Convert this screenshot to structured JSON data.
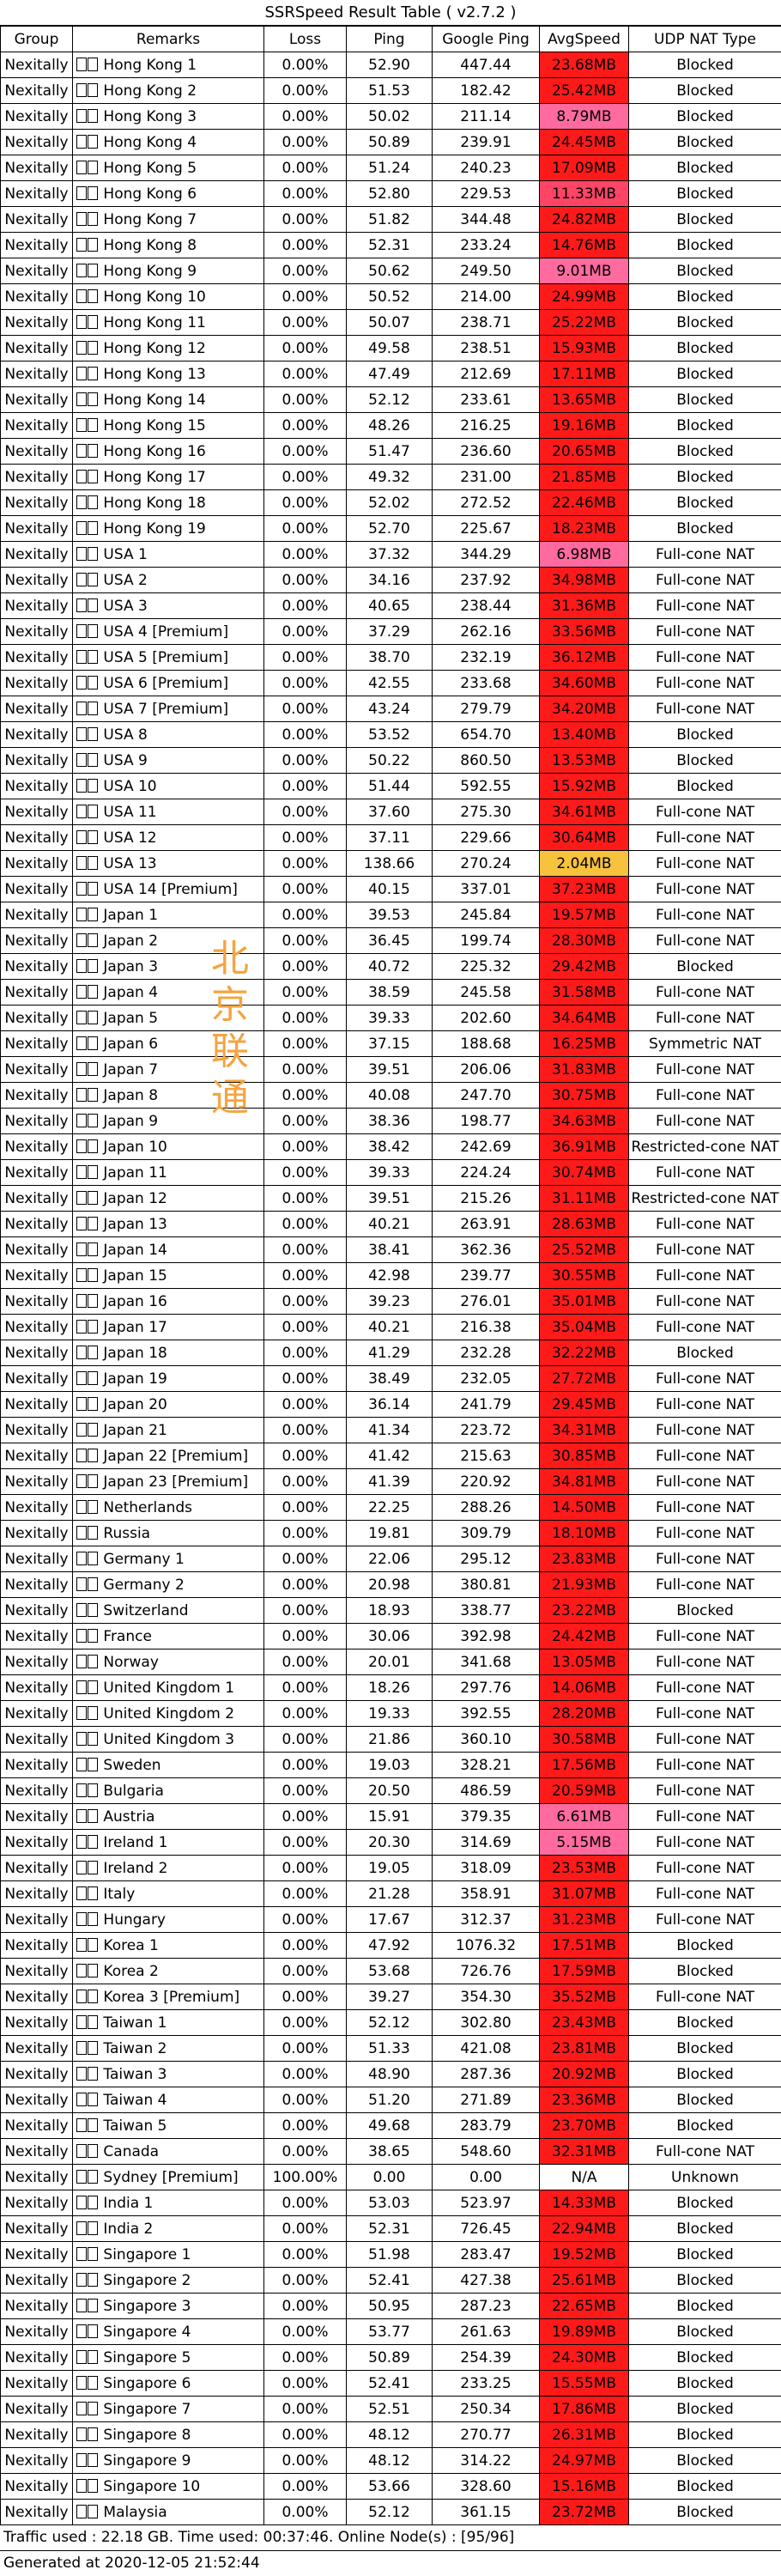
{
  "title": "SSRSpeed Result Table ( v2.7.2 )",
  "headers": [
    "Group",
    "Remarks",
    "Loss",
    "Ping",
    "Google Ping",
    "AvgSpeed",
    "UDP NAT Type"
  ],
  "rows": [
    [
      "Nexitally",
      "Hong Kong 1",
      "0.00%",
      "52.90",
      "447.44",
      "23.68MB",
      "Blocked",
      "#ff1a1a"
    ],
    [
      "Nexitally",
      "Hong Kong 2",
      "0.00%",
      "51.53",
      "182.42",
      "25.42MB",
      "Blocked",
      "#ff1a1a"
    ],
    [
      "Nexitally",
      "Hong Kong 3",
      "0.00%",
      "50.02",
      "211.14",
      "8.79MB",
      "Blocked",
      "#ff6a9f"
    ],
    [
      "Nexitally",
      "Hong Kong 4",
      "0.00%",
      "50.89",
      "239.91",
      "24.45MB",
      "Blocked",
      "#ff1a1a"
    ],
    [
      "Nexitally",
      "Hong Kong 5",
      "0.00%",
      "51.24",
      "240.23",
      "17.09MB",
      "Blocked",
      "#ff1a1a"
    ],
    [
      "Nexitally",
      "Hong Kong 6",
      "0.00%",
      "52.80",
      "229.53",
      "11.33MB",
      "Blocked",
      "#ff4466"
    ],
    [
      "Nexitally",
      "Hong Kong 7",
      "0.00%",
      "51.82",
      "344.48",
      "24.82MB",
      "Blocked",
      "#ff1a1a"
    ],
    [
      "Nexitally",
      "Hong Kong 8",
      "0.00%",
      "52.31",
      "233.24",
      "14.76MB",
      "Blocked",
      "#ff1a1a"
    ],
    [
      "Nexitally",
      "Hong Kong 9",
      "0.00%",
      "50.62",
      "249.50",
      "9.01MB",
      "Blocked",
      "#ff6a9f"
    ],
    [
      "Nexitally",
      "Hong Kong 10",
      "0.00%",
      "50.52",
      "214.00",
      "24.99MB",
      "Blocked",
      "#ff1a1a"
    ],
    [
      "Nexitally",
      "Hong Kong 11",
      "0.00%",
      "50.07",
      "238.71",
      "25.22MB",
      "Blocked",
      "#ff1a1a"
    ],
    [
      "Nexitally",
      "Hong Kong 12",
      "0.00%",
      "49.58",
      "238.51",
      "15.93MB",
      "Blocked",
      "#ff1a1a"
    ],
    [
      "Nexitally",
      "Hong Kong 13",
      "0.00%",
      "47.49",
      "212.69",
      "17.11MB",
      "Blocked",
      "#ff1a1a"
    ],
    [
      "Nexitally",
      "Hong Kong 14",
      "0.00%",
      "52.12",
      "233.61",
      "13.65MB",
      "Blocked",
      "#ff1a1a"
    ],
    [
      "Nexitally",
      "Hong Kong 15",
      "0.00%",
      "48.26",
      "216.25",
      "19.16MB",
      "Blocked",
      "#ff1a1a"
    ],
    [
      "Nexitally",
      "Hong Kong 16",
      "0.00%",
      "51.47",
      "236.60",
      "20.65MB",
      "Blocked",
      "#ff1a1a"
    ],
    [
      "Nexitally",
      "Hong Kong 17",
      "0.00%",
      "49.32",
      "231.00",
      "21.85MB",
      "Blocked",
      "#ff1a1a"
    ],
    [
      "Nexitally",
      "Hong Kong 18",
      "0.00%",
      "52.02",
      "272.52",
      "22.46MB",
      "Blocked",
      "#ff1a1a"
    ],
    [
      "Nexitally",
      "Hong Kong 19",
      "0.00%",
      "52.70",
      "225.67",
      "18.23MB",
      "Blocked",
      "#ff1a1a"
    ],
    [
      "Nexitally",
      "USA 1",
      "0.00%",
      "37.32",
      "344.29",
      "6.98MB",
      "Full-cone NAT",
      "#ff6a9f"
    ],
    [
      "Nexitally",
      "USA 2",
      "0.00%",
      "34.16",
      "237.92",
      "34.98MB",
      "Full-cone NAT",
      "#ff1a1a"
    ],
    [
      "Nexitally",
      "USA 3",
      "0.00%",
      "40.65",
      "238.44",
      "31.36MB",
      "Full-cone NAT",
      "#ff1a1a"
    ],
    [
      "Nexitally",
      "USA 4 [Premium]",
      "0.00%",
      "37.29",
      "262.16",
      "33.56MB",
      "Full-cone NAT",
      "#ff1a1a"
    ],
    [
      "Nexitally",
      "USA 5 [Premium]",
      "0.00%",
      "38.70",
      "232.19",
      "36.12MB",
      "Full-cone NAT",
      "#ff1a1a"
    ],
    [
      "Nexitally",
      "USA 6 [Premium]",
      "0.00%",
      "42.55",
      "233.68",
      "34.60MB",
      "Full-cone NAT",
      "#ff1a1a"
    ],
    [
      "Nexitally",
      "USA 7 [Premium]",
      "0.00%",
      "43.24",
      "279.79",
      "34.20MB",
      "Full-cone NAT",
      "#ff1a1a"
    ],
    [
      "Nexitally",
      "USA 8",
      "0.00%",
      "53.52",
      "654.70",
      "13.40MB",
      "Blocked",
      "#ff1a1a"
    ],
    [
      "Nexitally",
      "USA 9",
      "0.00%",
      "50.22",
      "860.50",
      "13.53MB",
      "Blocked",
      "#ff1a1a"
    ],
    [
      "Nexitally",
      "USA 10",
      "0.00%",
      "51.44",
      "592.55",
      "15.92MB",
      "Blocked",
      "#ff1a1a"
    ],
    [
      "Nexitally",
      "USA 11",
      "0.00%",
      "37.60",
      "275.30",
      "34.61MB",
      "Full-cone NAT",
      "#ff1a1a"
    ],
    [
      "Nexitally",
      "USA 12",
      "0.00%",
      "37.11",
      "229.66",
      "30.64MB",
      "Full-cone NAT",
      "#ff1a1a"
    ],
    [
      "Nexitally",
      "USA 13",
      "0.00%",
      "138.66",
      "270.24",
      "2.04MB",
      "Full-cone NAT",
      "#f7c23c"
    ],
    [
      "Nexitally",
      "USA 14 [Premium]",
      "0.00%",
      "40.15",
      "337.01",
      "37.23MB",
      "Full-cone NAT",
      "#ff1a1a"
    ],
    [
      "Nexitally",
      "Japan 1",
      "0.00%",
      "39.53",
      "245.84",
      "19.57MB",
      "Full-cone NAT",
      "#ff1a1a"
    ],
    [
      "Nexitally",
      "Japan 2",
      "0.00%",
      "36.45",
      "199.74",
      "28.30MB",
      "Full-cone NAT",
      "#ff1a1a"
    ],
    [
      "Nexitally",
      "Japan 3",
      "0.00%",
      "40.72",
      "225.32",
      "29.42MB",
      "Blocked",
      "#ff1a1a"
    ],
    [
      "Nexitally",
      "Japan 4",
      "0.00%",
      "38.59",
      "245.58",
      "31.58MB",
      "Full-cone NAT",
      "#ff1a1a"
    ],
    [
      "Nexitally",
      "Japan 5",
      "0.00%",
      "39.33",
      "202.60",
      "34.64MB",
      "Full-cone NAT",
      "#ff1a1a"
    ],
    [
      "Nexitally",
      "Japan 6",
      "0.00%",
      "37.15",
      "188.68",
      "16.25MB",
      "Symmetric NAT",
      "#ff1a1a"
    ],
    [
      "Nexitally",
      "Japan 7",
      "0.00%",
      "39.51",
      "206.06",
      "31.83MB",
      "Full-cone NAT",
      "#ff1a1a"
    ],
    [
      "Nexitally",
      "Japan 8",
      "0.00%",
      "40.08",
      "247.70",
      "30.75MB",
      "Full-cone NAT",
      "#ff1a1a"
    ],
    [
      "Nexitally",
      "Japan 9",
      "0.00%",
      "38.36",
      "198.77",
      "34.63MB",
      "Full-cone NAT",
      "#ff1a1a"
    ],
    [
      "Nexitally",
      "Japan 10",
      "0.00%",
      "38.42",
      "242.69",
      "36.91MB",
      "Restricted-cone NAT",
      "#ff1a1a"
    ],
    [
      "Nexitally",
      "Japan 11",
      "0.00%",
      "39.33",
      "224.24",
      "30.74MB",
      "Full-cone NAT",
      "#ff1a1a"
    ],
    [
      "Nexitally",
      "Japan 12",
      "0.00%",
      "39.51",
      "215.26",
      "31.11MB",
      "Restricted-cone NAT",
      "#ff1a1a"
    ],
    [
      "Nexitally",
      "Japan 13",
      "0.00%",
      "40.21",
      "263.91",
      "28.63MB",
      "Full-cone NAT",
      "#ff1a1a"
    ],
    [
      "Nexitally",
      "Japan 14",
      "0.00%",
      "38.41",
      "362.36",
      "25.52MB",
      "Full-cone NAT",
      "#ff1a1a"
    ],
    [
      "Nexitally",
      "Japan 15",
      "0.00%",
      "42.98",
      "239.77",
      "30.55MB",
      "Full-cone NAT",
      "#ff1a1a"
    ],
    [
      "Nexitally",
      "Japan 16",
      "0.00%",
      "39.23",
      "276.01",
      "35.01MB",
      "Full-cone NAT",
      "#ff1a1a"
    ],
    [
      "Nexitally",
      "Japan 17",
      "0.00%",
      "40.21",
      "216.38",
      "35.04MB",
      "Full-cone NAT",
      "#ff1a1a"
    ],
    [
      "Nexitally",
      "Japan 18",
      "0.00%",
      "41.29",
      "232.28",
      "32.22MB",
      "Blocked",
      "#ff1a1a"
    ],
    [
      "Nexitally",
      "Japan 19",
      "0.00%",
      "38.49",
      "232.05",
      "27.72MB",
      "Full-cone NAT",
      "#ff1a1a"
    ],
    [
      "Nexitally",
      "Japan 20",
      "0.00%",
      "36.14",
      "241.79",
      "29.45MB",
      "Full-cone NAT",
      "#ff1a1a"
    ],
    [
      "Nexitally",
      "Japan 21",
      "0.00%",
      "41.34",
      "223.72",
      "34.31MB",
      "Full-cone NAT",
      "#ff1a1a"
    ],
    [
      "Nexitally",
      "Japan 22 [Premium]",
      "0.00%",
      "41.42",
      "215.63",
      "30.85MB",
      "Full-cone NAT",
      "#ff1a1a"
    ],
    [
      "Nexitally",
      "Japan 23 [Premium]",
      "0.00%",
      "41.39",
      "220.92",
      "34.81MB",
      "Full-cone NAT",
      "#ff1a1a"
    ],
    [
      "Nexitally",
      "Netherlands",
      "0.00%",
      "22.25",
      "288.26",
      "14.50MB",
      "Full-cone NAT",
      "#ff1a1a"
    ],
    [
      "Nexitally",
      "Russia",
      "0.00%",
      "19.81",
      "309.79",
      "18.10MB",
      "Full-cone NAT",
      "#ff1a1a"
    ],
    [
      "Nexitally",
      "Germany 1",
      "0.00%",
      "22.06",
      "295.12",
      "23.83MB",
      "Full-cone NAT",
      "#ff1a1a"
    ],
    [
      "Nexitally",
      "Germany 2",
      "0.00%",
      "20.98",
      "380.81",
      "21.93MB",
      "Full-cone NAT",
      "#ff1a1a"
    ],
    [
      "Nexitally",
      "Switzerland",
      "0.00%",
      "18.93",
      "338.77",
      "23.22MB",
      "Blocked",
      "#ff1a1a"
    ],
    [
      "Nexitally",
      "France",
      "0.00%",
      "30.06",
      "392.98",
      "24.42MB",
      "Full-cone NAT",
      "#ff1a1a"
    ],
    [
      "Nexitally",
      "Norway",
      "0.00%",
      "20.01",
      "341.68",
      "13.05MB",
      "Full-cone NAT",
      "#ff1a1a"
    ],
    [
      "Nexitally",
      "United Kingdom 1",
      "0.00%",
      "18.26",
      "297.76",
      "14.06MB",
      "Full-cone NAT",
      "#ff1a1a"
    ],
    [
      "Nexitally",
      "United Kingdom 2",
      "0.00%",
      "19.33",
      "392.55",
      "28.20MB",
      "Full-cone NAT",
      "#ff1a1a"
    ],
    [
      "Nexitally",
      "United Kingdom 3",
      "0.00%",
      "21.86",
      "360.10",
      "30.58MB",
      "Full-cone NAT",
      "#ff1a1a"
    ],
    [
      "Nexitally",
      "Sweden",
      "0.00%",
      "19.03",
      "328.21",
      "17.56MB",
      "Full-cone NAT",
      "#ff1a1a"
    ],
    [
      "Nexitally",
      "Bulgaria",
      "0.00%",
      "20.50",
      "486.59",
      "20.59MB",
      "Full-cone NAT",
      "#ff1a1a"
    ],
    [
      "Nexitally",
      "Austria",
      "0.00%",
      "15.91",
      "379.35",
      "6.61MB",
      "Full-cone NAT",
      "#ff6a9f"
    ],
    [
      "Nexitally",
      "Ireland 1",
      "0.00%",
      "20.30",
      "314.69",
      "5.15MB",
      "Full-cone NAT",
      "#ff6a9f"
    ],
    [
      "Nexitally",
      "Ireland 2",
      "0.00%",
      "19.05",
      "318.09",
      "23.53MB",
      "Full-cone NAT",
      "#ff1a1a"
    ],
    [
      "Nexitally",
      "Italy",
      "0.00%",
      "21.28",
      "358.91",
      "31.07MB",
      "Full-cone NAT",
      "#ff1a1a"
    ],
    [
      "Nexitally",
      "Hungary",
      "0.00%",
      "17.67",
      "312.37",
      "31.23MB",
      "Full-cone NAT",
      "#ff1a1a"
    ],
    [
      "Nexitally",
      "Korea 1",
      "0.00%",
      "47.92",
      "1076.32",
      "17.51MB",
      "Blocked",
      "#ff1a1a"
    ],
    [
      "Nexitally",
      "Korea 2",
      "0.00%",
      "53.68",
      "726.76",
      "17.59MB",
      "Blocked",
      "#ff1a1a"
    ],
    [
      "Nexitally",
      "Korea 3 [Premium]",
      "0.00%",
      "39.27",
      "354.30",
      "35.52MB",
      "Full-cone NAT",
      "#ff1a1a"
    ],
    [
      "Nexitally",
      "Taiwan 1",
      "0.00%",
      "52.12",
      "302.80",
      "23.43MB",
      "Blocked",
      "#ff1a1a"
    ],
    [
      "Nexitally",
      "Taiwan 2",
      "0.00%",
      "51.33",
      "421.08",
      "23.81MB",
      "Blocked",
      "#ff1a1a"
    ],
    [
      "Nexitally",
      "Taiwan 3",
      "0.00%",
      "48.90",
      "287.36",
      "20.92MB",
      "Blocked",
      "#ff1a1a"
    ],
    [
      "Nexitally",
      "Taiwan 4",
      "0.00%",
      "51.20",
      "271.89",
      "23.36MB",
      "Blocked",
      "#ff1a1a"
    ],
    [
      "Nexitally",
      "Taiwan 5",
      "0.00%",
      "49.68",
      "283.79",
      "23.70MB",
      "Blocked",
      "#ff1a1a"
    ],
    [
      "Nexitally",
      "Canada",
      "0.00%",
      "38.65",
      "548.60",
      "32.31MB",
      "Full-cone NAT",
      "#ff1a1a"
    ],
    [
      "Nexitally",
      "Sydney [Premium]",
      "100.00%",
      "0.00",
      "0.00",
      "N/A",
      "Unknown",
      "#ffffff"
    ],
    [
      "Nexitally",
      "India 1",
      "0.00%",
      "53.03",
      "523.97",
      "14.33MB",
      "Blocked",
      "#ff1a1a"
    ],
    [
      "Nexitally",
      "India 2",
      "0.00%",
      "52.31",
      "726.45",
      "22.94MB",
      "Blocked",
      "#ff1a1a"
    ],
    [
      "Nexitally",
      "Singapore 1",
      "0.00%",
      "51.98",
      "283.47",
      "19.52MB",
      "Blocked",
      "#ff1a1a"
    ],
    [
      "Nexitally",
      "Singapore 2",
      "0.00%",
      "52.41",
      "427.38",
      "25.61MB",
      "Blocked",
      "#ff1a1a"
    ],
    [
      "Nexitally",
      "Singapore 3",
      "0.00%",
      "50.95",
      "287.23",
      "22.65MB",
      "Blocked",
      "#ff1a1a"
    ],
    [
      "Nexitally",
      "Singapore 4",
      "0.00%",
      "53.77",
      "261.63",
      "19.89MB",
      "Blocked",
      "#ff1a1a"
    ],
    [
      "Nexitally",
      "Singapore 5",
      "0.00%",
      "50.89",
      "254.39",
      "24.30MB",
      "Blocked",
      "#ff1a1a"
    ],
    [
      "Nexitally",
      "Singapore 6",
      "0.00%",
      "52.41",
      "233.25",
      "15.55MB",
      "Blocked",
      "#ff1a1a"
    ],
    [
      "Nexitally",
      "Singapore 7",
      "0.00%",
      "52.51",
      "250.34",
      "17.86MB",
      "Blocked",
      "#ff1a1a"
    ],
    [
      "Nexitally",
      "Singapore 8",
      "0.00%",
      "48.12",
      "270.77",
      "26.31MB",
      "Blocked",
      "#ff1a1a"
    ],
    [
      "Nexitally",
      "Singapore 9",
      "0.00%",
      "48.12",
      "314.22",
      "24.97MB",
      "Blocked",
      "#ff1a1a"
    ],
    [
      "Nexitally",
      "Singapore 10",
      "0.00%",
      "53.66",
      "328.60",
      "15.16MB",
      "Blocked",
      "#ff1a1a"
    ],
    [
      "Nexitally",
      "Malaysia",
      "0.00%",
      "52.12",
      "361.15",
      "23.72MB",
      "Blocked",
      "#ff1a1a"
    ]
  ],
  "footer": {
    "traffic": "Traffic used : 22.18 GB. Time used: 00:37:46. Online Node(s) : [95/96]",
    "generated": "Generated at 2020-12-05 21:52:44"
  },
  "stamp": [
    "北",
    "京",
    "联",
    "通"
  ],
  "colors": {
    "fast": "#ff1a1a",
    "mid": "#ff4466",
    "slow": "#ff6a9f",
    "veryslow": "#f7c23c",
    "na": "#ffffff",
    "stamp": "#f5a340"
  },
  "icons": {
    "flag": "flag-icon"
  }
}
